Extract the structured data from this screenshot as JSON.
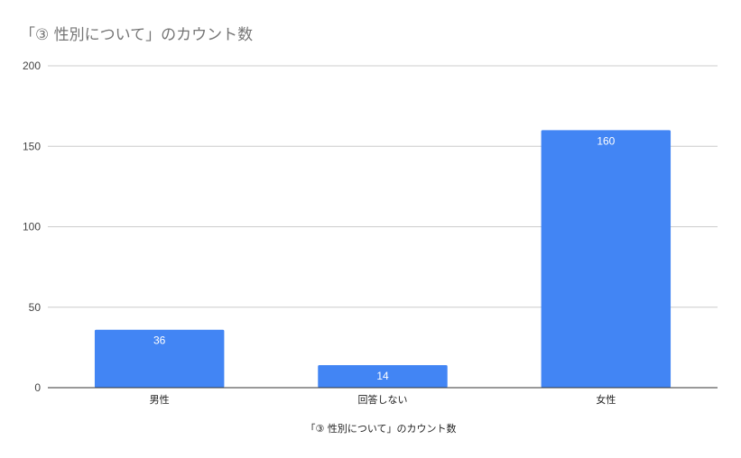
{
  "chart_data": {
    "type": "bar",
    "title": "「③ 性別について」のカウント数",
    "xlabel": "「③ 性別について」のカウント数",
    "ylabel": "",
    "categories": [
      "男性",
      "回答しない",
      "女性"
    ],
    "values": [
      36,
      14,
      160
    ],
    "data_labels": [
      "36",
      "14",
      "160"
    ],
    "ylim": [
      0,
      200
    ],
    "yticks": [
      0,
      50,
      100,
      150,
      200
    ],
    "grid": true,
    "legend": "none",
    "colors": {
      "bar": "#4285f4",
      "gridline": "#cccccc",
      "baseline": "#333333",
      "title": "#757575"
    }
  }
}
